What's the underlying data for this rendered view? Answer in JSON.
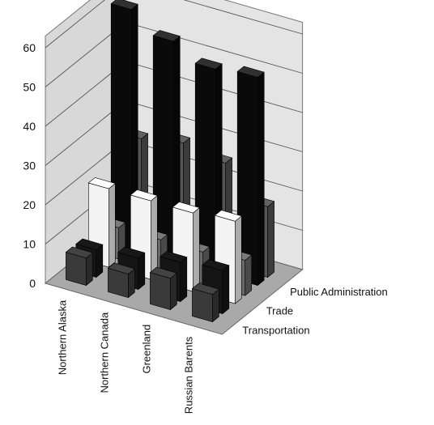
{
  "chart_data": {
    "type": "bar",
    "style": "3d-clustered-column",
    "categories": [
      "Northern Alaska",
      "Northern Canada",
      "Greenland",
      "Russian Barents"
    ],
    "series": [
      {
        "name": "Transportation",
        "values": [
          7,
          6,
          8,
          7
        ],
        "color": "#3a3a3a"
      },
      {
        "name": "Trade",
        "values": [
          20,
          20,
          20,
          21
        ],
        "color": "#f4f4f4"
      },
      {
        "name": "Public Administration",
        "values": [
          61,
          56,
          52,
          53
        ],
        "color": "#0a0a0a"
      }
    ],
    "secondary_bars": [
      {
        "values": [
          7,
          8,
          10,
          11
        ],
        "color": "#151515"
      },
      {
        "values": [
          8,
          8,
          8,
          9
        ],
        "color": "#6a6a6a"
      },
      {
        "values": [
          26,
          28,
          26,
          18
        ],
        "color": "#555555"
      }
    ],
    "y_ticks": [
      "0",
      "10",
      "20",
      "30",
      "40",
      "50",
      "60"
    ],
    "ylim": [
      0,
      60
    ],
    "grid": true,
    "title": "",
    "xlabel": "",
    "ylabel": "",
    "depth_labels_position": "right"
  }
}
